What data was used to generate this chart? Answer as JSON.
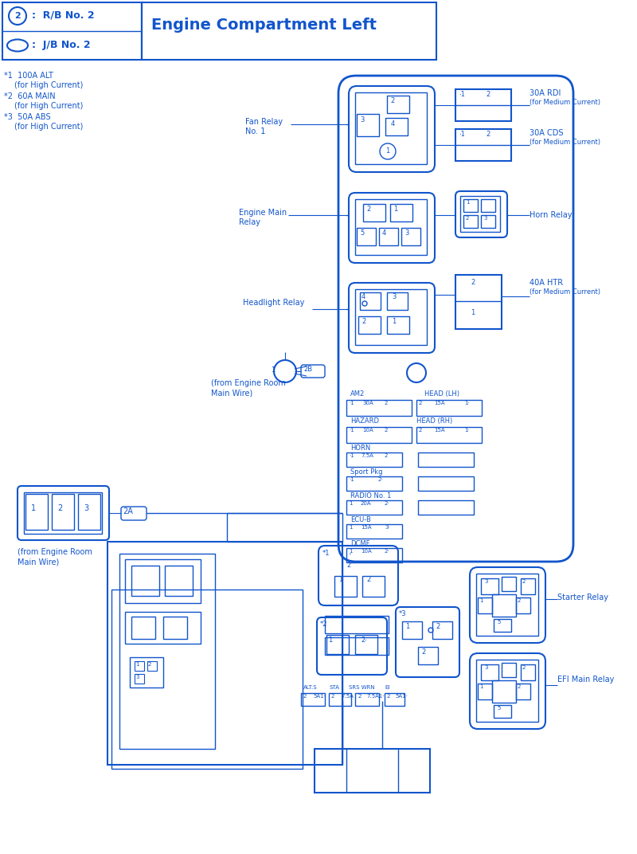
{
  "bg_color": "#ffffff",
  "blue": "#1155cc",
  "title": "Engine Compartment Left",
  "legend_rb": "Ⓐ :  R/B No. 2",
  "legend_jb": "○ :  J/B No. 2",
  "note1a": "*1  100A ALT",
  "note1b": "    (for High Current)",
  "note2a": "*2  60A MAIN",
  "note2b": "    (for High Current)",
  "note3a": "*3  50A ABS",
  "note3b": "    (for High Current)",
  "fan_relay": "Fan Relay\nNo. 1",
  "engine_main": "Engine Main\nRelay",
  "headlight": "Headlight Relay",
  "rdi": "30A RDI\n(for Medium Current)",
  "cds": "30A CDS\n(for Medium Current)",
  "horn": "Horn Relay",
  "htr": "40A HTR\n(for Medium Current)",
  "starter": "Starter Relay",
  "efi": "EFI Main Relay",
  "from_engine": "(from Engine Room\nMain Wire)",
  "label_2b": "2B",
  "label_2a": "2A"
}
